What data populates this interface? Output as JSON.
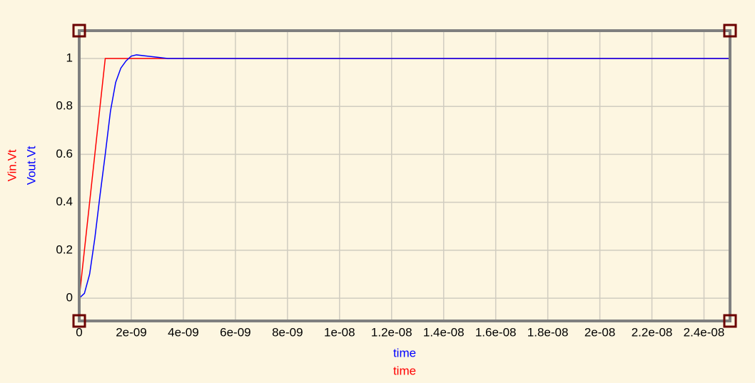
{
  "chart_data": {
    "type": "line",
    "x": [
      0,
      2e-10,
      4e-10,
      6e-10,
      8e-10,
      1e-09,
      1.2e-09,
      1.4e-09,
      1.6e-09,
      1.8e-09,
      2e-09,
      2.2e-09,
      2.6e-09,
      3e-09,
      3.4e-09,
      2.5e-08
    ],
    "series": [
      {
        "name": "Vin.Vt",
        "color": "#ff0000",
        "values": [
          0,
          0.2,
          0.4,
          0.6,
          0.8,
          1,
          1,
          1,
          1,
          1,
          1,
          1,
          1,
          1,
          1,
          1
        ]
      },
      {
        "name": "Vout.Vt",
        "color": "#0000ff",
        "values": [
          0,
          0.02,
          0.1,
          0.25,
          0.43,
          0.6,
          0.78,
          0.9,
          0.96,
          0.99,
          1.01,
          1.015,
          1.01,
          1.005,
          1,
          1
        ]
      }
    ],
    "xlabels": [
      {
        "text": "time",
        "color": "#0000ff"
      },
      {
        "text": "time",
        "color": "#ff0000"
      }
    ],
    "xlim": [
      0,
      2.5e-08
    ],
    "xticks": [
      0,
      {
        "value": 2e-09,
        "label": "2e-09"
      },
      {
        "value": 4e-09,
        "label": "4e-09"
      },
      {
        "value": 6e-09,
        "label": "6e-09"
      },
      {
        "value": 8e-09,
        "label": "8e-09"
      },
      {
        "value": 1e-08,
        "label": "1e-08"
      },
      {
        "value": 1.2e-08,
        "label": "1.2e-08"
      },
      {
        "value": 1.4e-08,
        "label": "1.4e-08"
      },
      {
        "value": 1.6e-08,
        "label": "1.6e-08"
      },
      {
        "value": 1.8e-08,
        "label": "1.8e-08"
      },
      {
        "value": 2e-08,
        "label": "2e-08"
      },
      {
        "value": 2.2e-08,
        "label": "2.2e-08"
      },
      {
        "value": 2.4e-08,
        "label": "2.4e-08"
      }
    ],
    "ylim": [
      -0.095,
      1.116
    ],
    "yticks": [
      0,
      0.2,
      0.4,
      0.6,
      0.8,
      1
    ],
    "grid": true
  }
}
